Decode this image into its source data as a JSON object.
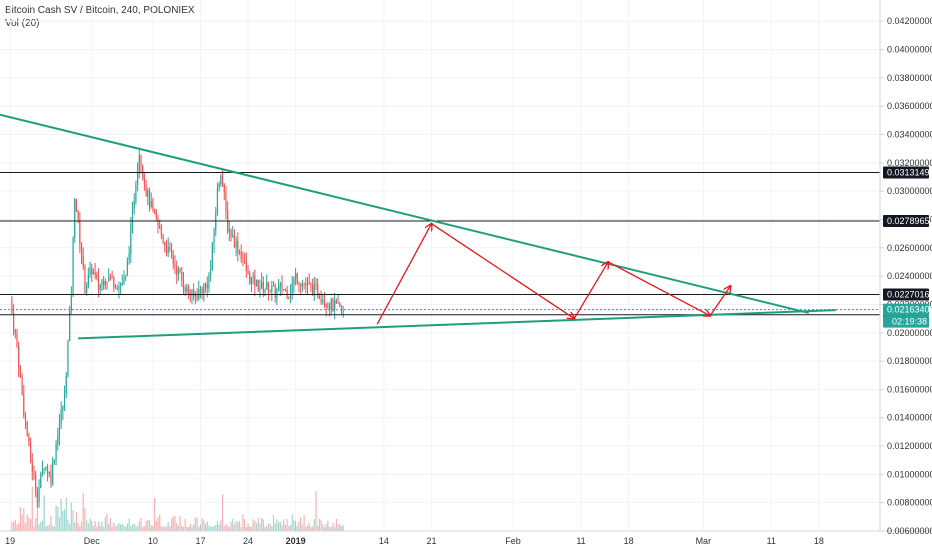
{
  "header": {
    "symbol": "Bitcoin Cash SV / Bitcoin, 240, POLONIEX",
    "indicator": "Vol (20)"
  },
  "colors": {
    "up": "#26a69a",
    "down": "#ef5350",
    "trend": "#1f9e7e",
    "arrow": "#e8151b",
    "level": "#1a1a1a",
    "badge_dark": "#131722",
    "badge_green": "#26a69a"
  },
  "chart_data": {
    "type": "candlestick",
    "y_axis": {
      "ticks": [
        "0.04200000",
        "0.04000000",
        "0.03800000",
        "0.03600000",
        "0.03400000",
        "0.03200000",
        "0.03000000",
        "0.02800000",
        "0.02600000",
        "0.02400000",
        "0.02200000",
        "0.02000000",
        "0.01800000",
        "0.01600000",
        "0.01400000",
        "0.01200000",
        "0.01000000",
        "0.00800000",
        "0.00600000"
      ],
      "ylim": [
        0.006,
        0.0435
      ]
    },
    "x_axis": {
      "ticks": [
        "19",
        "Dec",
        "10",
        "17",
        "24",
        "2019",
        "14",
        "21",
        "Feb",
        "11",
        "18",
        "Mar",
        "11",
        "18"
      ],
      "tick_days": [
        0,
        12,
        21,
        28,
        35,
        42,
        55,
        62,
        74,
        84,
        91,
        102,
        112,
        119
      ],
      "xlim": [
        -1.5,
        128
      ]
    },
    "price_path": [
      [
        0,
        0.0222
      ],
      [
        1,
        0.019
      ],
      [
        2,
        0.0145
      ],
      [
        3,
        0.011
      ],
      [
        4,
        0.0085
      ],
      [
        5,
        0.0108
      ],
      [
        6,
        0.0098
      ],
      [
        7,
        0.013
      ],
      [
        8,
        0.0155
      ],
      [
        9,
        0.023
      ],
      [
        9.5,
        0.0298
      ],
      [
        10.5,
        0.0255
      ],
      [
        11,
        0.0232
      ],
      [
        12,
        0.0245
      ],
      [
        13,
        0.0232
      ],
      [
        14,
        0.024
      ],
      [
        15,
        0.0237
      ],
      [
        16,
        0.0233
      ],
      [
        17,
        0.0238
      ],
      [
        17.5,
        0.026
      ],
      [
        18.5,
        0.0308
      ],
      [
        19,
        0.0328
      ],
      [
        20,
        0.03
      ],
      [
        21,
        0.0285
      ],
      [
        22,
        0.0272
      ],
      [
        23,
        0.026
      ],
      [
        24,
        0.025
      ],
      [
        25,
        0.024
      ],
      [
        26,
        0.023
      ],
      [
        27,
        0.0225
      ],
      [
        28,
        0.023
      ],
      [
        29,
        0.0235
      ],
      [
        29.5,
        0.0245
      ],
      [
        30.5,
        0.03
      ],
      [
        31,
        0.0315
      ],
      [
        32,
        0.0275
      ],
      [
        33,
        0.0265
      ],
      [
        34,
        0.0255
      ],
      [
        35,
        0.024
      ],
      [
        36,
        0.0235
      ],
      [
        37,
        0.0232
      ],
      [
        38,
        0.0232
      ],
      [
        39,
        0.0228
      ],
      [
        40,
        0.0232
      ],
      [
        41,
        0.0228
      ],
      [
        42,
        0.024
      ],
      [
        43,
        0.0235
      ],
      [
        44,
        0.0232
      ],
      [
        45,
        0.023
      ],
      [
        46,
        0.0225
      ],
      [
        47,
        0.022
      ],
      [
        48,
        0.0218
      ],
      [
        49,
        0.0214
      ]
    ],
    "levels": [
      {
        "value": 0.03131499,
        "label": "0.03131499",
        "badge": "dark"
      },
      {
        "value": 0.02789657,
        "label": "0.02789657",
        "badge": "dark"
      },
      {
        "value": 0.02270169,
        "label": "0.02270169",
        "badge": "dark"
      },
      {
        "value": 0.02127357,
        "label": "0.02127357",
        "badge": "dark"
      }
    ],
    "last_price": {
      "value": 0.02163409,
      "label": "0.02163409",
      "countdown": "02:19:38"
    },
    "trendlines": [
      {
        "from": [
          -1.5,
          0.0354
        ],
        "to": [
          117.5,
          0.0214
        ]
      },
      {
        "from": [
          10,
          0.0196
        ],
        "to": [
          121.5,
          0.0216
        ]
      }
    ],
    "projection": [
      [
        54,
        0.0206
      ],
      [
        62,
        0.0277
      ],
      [
        83,
        0.021
      ],
      [
        88,
        0.025
      ],
      [
        103,
        0.0212
      ],
      [
        106,
        0.0233
      ]
    ]
  }
}
